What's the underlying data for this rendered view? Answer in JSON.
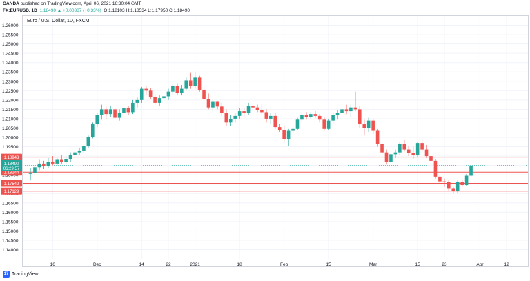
{
  "header": {
    "publisher": "OANDA",
    "published_text": "published on TradingView.com, April 06, 2021 16:30:04 GMT",
    "symbol": "FX:EURUSD, 1D",
    "change": "1.18490 ▲ +0.00387 (+0.33%)",
    "ohlc": "O:1.18103 H:1.18534 L:1.17950 C:1.18490"
  },
  "footer": {
    "logo_text": "17",
    "brand": "TradingView"
  },
  "colors": {
    "up": "#26a69a",
    "down": "#ef5350",
    "level_line": "#ef5350",
    "price_line": "#26a69a",
    "grid": "#f0f3fa",
    "axis_text": "#131722"
  },
  "chart_data": {
    "type": "candlestick",
    "title": "Euro / U.S. Dollar, 1D, FXCM",
    "ylim": [
      1.135,
      1.265
    ],
    "y_ticks": [
      "1.14000",
      "1.14500",
      "1.15000",
      "1.15500",
      "1.16000",
      "1.16500",
      "1.17000",
      "1.17500",
      "1.18000",
      "1.18500",
      "1.19000",
      "1.19500",
      "1.20000",
      "1.20500",
      "1.21000",
      "1.21500",
      "1.22000",
      "1.22500",
      "1.23000",
      "1.23500",
      "1.24000",
      "1.24500",
      "1.25000",
      "1.25500",
      "1.26000"
    ],
    "x_ticks": [
      {
        "label": "16",
        "index": 5
      },
      {
        "label": "Dec",
        "index": 15
      },
      {
        "label": "14",
        "index": 25
      },
      {
        "label": "22",
        "index": 31
      },
      {
        "label": "2021",
        "index": 37
      },
      {
        "label": "18",
        "index": 47
      },
      {
        "label": "Feb",
        "index": 57
      },
      {
        "label": "15",
        "index": 67
      },
      {
        "label": "Mar",
        "index": 77
      },
      {
        "label": "15",
        "index": 87
      },
      {
        "label": "23",
        "index": 93
      },
      {
        "label": "Apr",
        "index": 101
      },
      {
        "label": "12",
        "index": 107
      }
    ],
    "candles": [
      [
        1.1805,
        1.1835,
        1.177,
        1.181
      ],
      [
        1.181,
        1.185,
        1.1795,
        1.184
      ],
      [
        1.184,
        1.188,
        1.1825,
        1.186
      ],
      [
        1.186,
        1.1875,
        1.183,
        1.1845
      ],
      [
        1.1845,
        1.189,
        1.1835,
        1.187
      ],
      [
        1.187,
        1.19,
        1.185,
        1.186
      ],
      [
        1.186,
        1.189,
        1.1845,
        1.188
      ],
      [
        1.188,
        1.1905,
        1.186,
        1.187
      ],
      [
        1.187,
        1.19,
        1.1855,
        1.1885
      ],
      [
        1.1885,
        1.192,
        1.187,
        1.1905
      ],
      [
        1.1905,
        1.1935,
        1.1895,
        1.192
      ],
      [
        1.192,
        1.1945,
        1.1905,
        1.193
      ],
      [
        1.193,
        1.196,
        1.1915,
        1.1955
      ],
      [
        1.1955,
        1.201,
        1.1945,
        1.2
      ],
      [
        1.2,
        1.208,
        1.1995,
        1.207
      ],
      [
        1.207,
        1.213,
        1.2055,
        1.212
      ],
      [
        1.212,
        1.2175,
        1.2095,
        1.215
      ],
      [
        1.215,
        1.2165,
        1.21,
        1.2125
      ],
      [
        1.2125,
        1.217,
        1.211,
        1.215
      ],
      [
        1.215,
        1.216,
        1.2095,
        1.2105
      ],
      [
        1.2105,
        1.215,
        1.209,
        1.213
      ],
      [
        1.213,
        1.2165,
        1.2115,
        1.2155
      ],
      [
        1.2155,
        1.217,
        1.212,
        1.2135
      ],
      [
        1.2135,
        1.22,
        1.2125,
        1.2185
      ],
      [
        1.2185,
        1.2215,
        1.216,
        1.22
      ],
      [
        1.22,
        1.227,
        1.2185,
        1.226
      ],
      [
        1.226,
        1.2275,
        1.223,
        1.225
      ],
      [
        1.225,
        1.2265,
        1.2205,
        1.2215
      ],
      [
        1.2215,
        1.2235,
        1.2175,
        1.2185
      ],
      [
        1.2185,
        1.2225,
        1.217,
        1.221
      ],
      [
        1.221,
        1.2235,
        1.2195,
        1.222
      ],
      [
        1.222,
        1.226,
        1.22,
        1.2245
      ],
      [
        1.2245,
        1.2285,
        1.223,
        1.2275
      ],
      [
        1.2275,
        1.229,
        1.2225,
        1.224
      ],
      [
        1.224,
        1.228,
        1.2225,
        1.226
      ],
      [
        1.226,
        1.232,
        1.225,
        1.2305
      ],
      [
        1.2305,
        1.2345,
        1.226,
        1.2275
      ],
      [
        1.2275,
        1.235,
        1.226,
        1.232
      ],
      [
        1.232,
        1.233,
        1.2245,
        1.2255
      ],
      [
        1.2255,
        1.2275,
        1.2195,
        1.2205
      ],
      [
        1.2205,
        1.2235,
        1.215,
        1.216
      ],
      [
        1.216,
        1.2205,
        1.213,
        1.219
      ],
      [
        1.219,
        1.2195,
        1.215,
        1.2165
      ],
      [
        1.2165,
        1.2185,
        1.2115,
        1.213
      ],
      [
        1.213,
        1.215,
        1.206,
        1.208
      ],
      [
        1.208,
        1.212,
        1.206,
        1.21
      ],
      [
        1.21,
        1.213,
        1.208,
        1.2115
      ],
      [
        1.2115,
        1.2155,
        1.21,
        1.214
      ],
      [
        1.214,
        1.216,
        1.211,
        1.213
      ],
      [
        1.213,
        1.2185,
        1.212,
        1.217
      ],
      [
        1.217,
        1.219,
        1.2145,
        1.216
      ],
      [
        1.216,
        1.2175,
        1.2135,
        1.2145
      ],
      [
        1.2145,
        1.2175,
        1.212,
        1.2135
      ],
      [
        1.2135,
        1.215,
        1.208,
        1.21
      ],
      [
        1.21,
        1.213,
        1.207,
        1.2115
      ],
      [
        1.2115,
        1.213,
        1.2045,
        1.2055
      ],
      [
        1.2055,
        1.207,
        1.203,
        1.204
      ],
      [
        1.204,
        1.206,
        1.198,
        1.199
      ],
      [
        1.199,
        1.2045,
        1.1955,
        1.2035
      ],
      [
        1.2035,
        1.206,
        1.202,
        1.2045
      ],
      [
        1.2045,
        1.2105,
        1.204,
        1.2095
      ],
      [
        1.2095,
        1.213,
        1.208,
        1.212
      ],
      [
        1.212,
        1.2135,
        1.2095,
        1.211
      ],
      [
        1.211,
        1.2135,
        1.21,
        1.2125
      ],
      [
        1.2125,
        1.214,
        1.2105,
        1.2115
      ],
      [
        1.2115,
        1.2125,
        1.208,
        1.2095
      ],
      [
        1.2095,
        1.211,
        1.2035,
        1.2045
      ],
      [
        1.2045,
        1.21,
        1.204,
        1.209
      ],
      [
        1.209,
        1.213,
        1.2075,
        1.212
      ],
      [
        1.212,
        1.2145,
        1.2095,
        1.213
      ],
      [
        1.213,
        1.217,
        1.212,
        1.215
      ],
      [
        1.215,
        1.2175,
        1.2125,
        1.214
      ],
      [
        1.214,
        1.218,
        1.211,
        1.216
      ],
      [
        1.216,
        1.2245,
        1.214,
        1.215
      ],
      [
        1.215,
        1.217,
        1.205,
        1.207
      ],
      [
        1.207,
        1.2095,
        1.201,
        1.205
      ],
      [
        1.205,
        1.2105,
        1.203,
        1.209
      ],
      [
        1.209,
        1.21,
        1.202,
        1.2035
      ],
      [
        1.2035,
        1.2045,
        1.195,
        1.1965
      ],
      [
        1.1965,
        1.1975,
        1.191,
        1.192
      ],
      [
        1.192,
        1.1935,
        1.1855,
        1.187
      ],
      [
        1.187,
        1.192,
        1.186,
        1.191
      ],
      [
        1.191,
        1.1935,
        1.189,
        1.192
      ],
      [
        1.192,
        1.1975,
        1.1905,
        1.1965
      ],
      [
        1.1965,
        1.1985,
        1.1925,
        1.1935
      ],
      [
        1.1935,
        1.1955,
        1.19,
        1.1915
      ],
      [
        1.1915,
        1.195,
        1.1885,
        1.1905
      ],
      [
        1.1905,
        1.1975,
        1.1895,
        1.197
      ],
      [
        1.197,
        1.1985,
        1.192,
        1.1935
      ],
      [
        1.1935,
        1.196,
        1.189,
        1.19
      ],
      [
        1.19,
        1.1915,
        1.186,
        1.1875
      ],
      [
        1.1875,
        1.1885,
        1.178,
        1.179
      ],
      [
        1.179,
        1.18,
        1.1755,
        1.1765
      ],
      [
        1.1765,
        1.178,
        1.1735,
        1.176
      ],
      [
        1.176,
        1.1775,
        1.1715,
        1.1725
      ],
      [
        1.1725,
        1.1735,
        1.1705,
        1.1715
      ],
      [
        1.1715,
        1.177,
        1.1705,
        1.176
      ],
      [
        1.176,
        1.1775,
        1.1735,
        1.1745
      ],
      [
        1.1745,
        1.1805,
        1.174,
        1.1795
      ],
      [
        1.1795,
        1.1855,
        1.1785,
        1.1849
      ]
    ],
    "x_count": 110,
    "levels": [
      {
        "value": 1.18943,
        "label": "1.18943"
      },
      {
        "value": 1.18144,
        "label": "1.18144"
      },
      {
        "value": 1.17542,
        "label": "1.17542"
      },
      {
        "value": 1.17129,
        "label": "1.17129"
      }
    ],
    "last_price": {
      "value": 1.1849,
      "label": "1.18490",
      "countdown": "06:29:57"
    },
    "grid": true
  }
}
